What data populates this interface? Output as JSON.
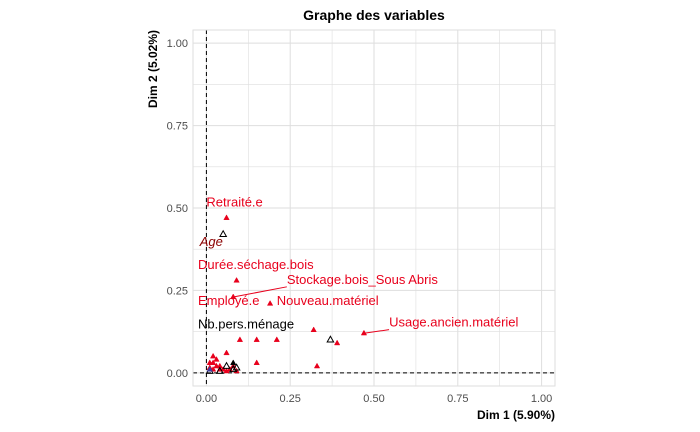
{
  "chart_data": {
    "type": "scatter",
    "title": "Graphe des variables",
    "xlabel": "Dim 1 (5.90%)",
    "ylabel": "Dim 2 (5.02%)",
    "xlim": [
      -0.04,
      1.04
    ],
    "ylim": [
      -0.04,
      1.04
    ],
    "x_ticks": [
      "0.00",
      "0.25",
      "0.50",
      "0.75",
      "1.00"
    ],
    "y_ticks": [
      "0.00",
      "0.25",
      "0.50",
      "0.75",
      "1.00"
    ],
    "x_tick_values": [
      0,
      0.25,
      0.5,
      0.75,
      1
    ],
    "y_tick_values": [
      0,
      0.25,
      0.5,
      0.75,
      1
    ],
    "grid": true,
    "reference_lines": {
      "x": 0,
      "y": 0,
      "style": "dashed"
    },
    "colors": {
      "category": "#e8001c",
      "variable": "#000000",
      "illustrative": "#8b0000",
      "grid": "#dedede",
      "axis_text": "#4d4d4d"
    },
    "series": [
      {
        "marker": "filled-triangle",
        "color": "#e8001c",
        "x": [
          0.06,
          0.09,
          0.08,
          0.19,
          0.47,
          0.32,
          0.39,
          0.15,
          0.21,
          0.33,
          0.15,
          0.1,
          0.06,
          0.08,
          0.02,
          0.03,
          0.04,
          0.01,
          0.02,
          0.05,
          0.03,
          0.07,
          0.01,
          0.09,
          0.06,
          0.02,
          0.04
        ],
        "y": [
          0.47,
          0.28,
          0.23,
          0.21,
          0.12,
          0.13,
          0.09,
          0.1,
          0.1,
          0.02,
          0.03,
          0.1,
          0.06,
          0.02,
          0.05,
          0.04,
          0.02,
          0.03,
          0.01,
          0.01,
          0.02,
          0.01,
          0.015,
          0.005,
          0.005,
          0.03,
          0.01
        ]
      },
      {
        "marker": "open-triangle",
        "color": "#000000",
        "x": [
          0.05,
          0.37,
          0.06,
          0.09,
          0.08,
          0.04,
          0.01
        ],
        "y": [
          0.42,
          0.1,
          0.02,
          0.015,
          0.01,
          0.005,
          0.005
        ]
      },
      {
        "marker": "filled-triangle",
        "color": "#000000",
        "x": [
          0.08
        ],
        "y": [
          0.03
        ]
      },
      {
        "marker": "filled-triangle",
        "color": "#3f3f9f",
        "x": [
          0.01
        ],
        "y": [
          0.01
        ]
      }
    ],
    "labels": [
      {
        "text": "Retraité.e",
        "color": "#e8001c",
        "italic": false,
        "x": 0.0,
        "y": 0.505,
        "point_x": 0.06,
        "point_y": 0.47
      },
      {
        "text": "Age",
        "color": "#8b0000",
        "italic": true,
        "x": -0.02,
        "y": 0.385,
        "point_x": 0.05,
        "point_y": 0.42
      },
      {
        "text": "Durée.séchage.bois",
        "color": "#e8001c",
        "italic": false,
        "x": -0.025,
        "y": 0.315,
        "point_x": 0.09,
        "point_y": 0.28
      },
      {
        "text": "Stockage.bois_Sous Abris",
        "color": "#e8001c",
        "italic": false,
        "x": 0.24,
        "y": 0.27,
        "point_x": 0.08,
        "point_y": 0.23
      },
      {
        "text": "Employé.e",
        "color": "#e8001c",
        "italic": false,
        "x": -0.025,
        "y": 0.205,
        "point_x": 0.08,
        "point_y": 0.23
      },
      {
        "text": "Nouveau.matériel",
        "color": "#e8001c",
        "italic": false,
        "x": 0.21,
        "y": 0.205,
        "point_x": 0.19,
        "point_y": 0.21
      },
      {
        "text": "Nb.pers.ménage",
        "color": "#000000",
        "italic": false,
        "x": -0.025,
        "y": 0.135,
        "point_x": 0.08,
        "point_y": 0.13
      },
      {
        "text": "Usage.ancien.matériel",
        "color": "#e8001c",
        "italic": false,
        "x": 0.545,
        "y": 0.14,
        "point_x": 0.47,
        "point_y": 0.12
      }
    ]
  }
}
